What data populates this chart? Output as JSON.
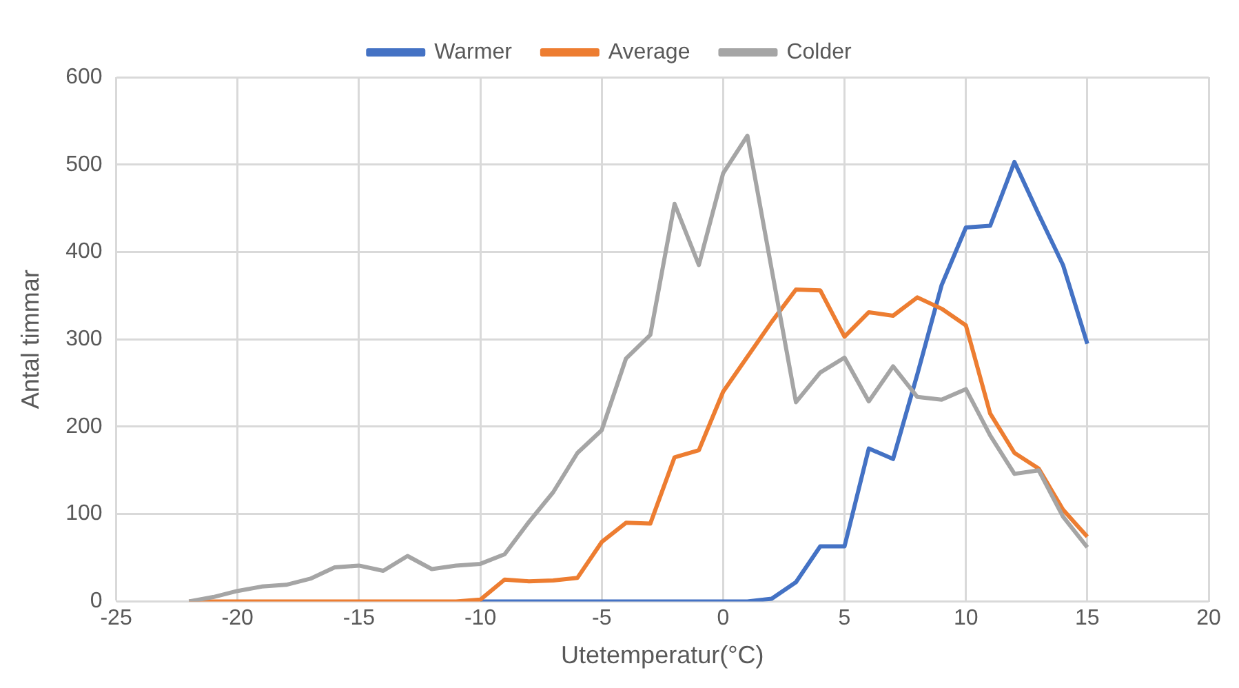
{
  "chart_data": {
    "type": "line",
    "xlabel": "Utetemperatur(°C)",
    "ylabel": "Antal timmar",
    "x": [
      -22,
      -21,
      -20,
      -19,
      -18,
      -17,
      -16,
      -15,
      -14,
      -13,
      -12,
      -11,
      -10,
      -9,
      -8,
      -7,
      -6,
      -5,
      -4,
      -3,
      -2,
      -1,
      0,
      1,
      2,
      3,
      4,
      5,
      6,
      7,
      8,
      9,
      10,
      11,
      12,
      13,
      14,
      15
    ],
    "series": [
      {
        "name": "Warmer",
        "color": "#4472c4",
        "values": [
          null,
          null,
          null,
          null,
          null,
          null,
          null,
          null,
          null,
          null,
          null,
          null,
          0,
          0,
          0,
          0,
          0,
          0,
          0,
          0,
          0,
          0,
          0,
          0,
          3,
          22,
          63,
          63,
          175,
          163,
          260,
          362,
          428,
          430,
          503,
          443,
          385,
          295
        ]
      },
      {
        "name": "Average",
        "color": "#ed7d31",
        "values": [
          0,
          0,
          0,
          0,
          0,
          0,
          0,
          0,
          0,
          0,
          0,
          0,
          2,
          25,
          23,
          24,
          27,
          68,
          90,
          89,
          165,
          173,
          240,
          280,
          320,
          357,
          356,
          303,
          331,
          327,
          348,
          335,
          316,
          215,
          170,
          152,
          105,
          74
        ]
      },
      {
        "name": "Colder",
        "color": "#a5a5a5",
        "values": [
          0,
          5,
          12,
          17,
          19,
          26,
          39,
          41,
          35,
          52,
          37,
          41,
          43,
          54,
          91,
          125,
          170,
          196,
          278,
          305,
          455,
          385,
          490,
          533,
          380,
          228,
          262,
          279,
          229,
          269,
          234,
          231,
          243,
          190,
          146,
          150,
          97,
          62
        ]
      }
    ],
    "xlim": [
      -25,
      20
    ],
    "xticks": [
      -25,
      -20,
      -15,
      -10,
      -5,
      0,
      5,
      10,
      15,
      20
    ],
    "ylim": [
      0,
      600
    ],
    "yticks": [
      0,
      100,
      200,
      300,
      400,
      500,
      600
    ],
    "grid": true,
    "legend": "top",
    "marker": "none",
    "line_style": "solid"
  }
}
